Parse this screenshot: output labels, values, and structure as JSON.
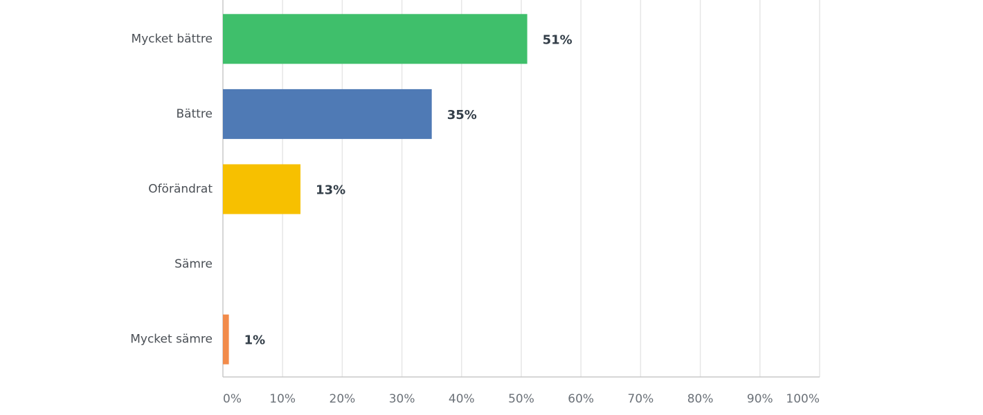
{
  "chart_data": {
    "type": "hbar",
    "categories": [
      "Mycket bättre",
      "Bättre",
      "Oförändrat",
      "Sämre",
      "Mycket sämre"
    ],
    "values": [
      51,
      35,
      13,
      0,
      1
    ],
    "value_labels": [
      "51%",
      "35%",
      "13%",
      null,
      "1%"
    ],
    "colors": [
      "#3fbf6b",
      "#4f7ab5",
      "#f7c000",
      null,
      "#f28b4a"
    ],
    "xlim": [
      0,
      100
    ],
    "xticks": [
      {
        "value": 0,
        "label": "0%"
      },
      {
        "value": 10,
        "label": "10%"
      },
      {
        "value": 20,
        "label": "20%"
      },
      {
        "value": 30,
        "label": "30%"
      },
      {
        "value": 40,
        "label": "40%"
      },
      {
        "value": 50,
        "label": "50%"
      },
      {
        "value": 60,
        "label": "60%"
      },
      {
        "value": 70,
        "label": "70%"
      },
      {
        "value": 80,
        "label": "80%"
      },
      {
        "value": 90,
        "label": "90%"
      },
      {
        "value": 100,
        "label": "100%"
      }
    ],
    "grid": true
  }
}
